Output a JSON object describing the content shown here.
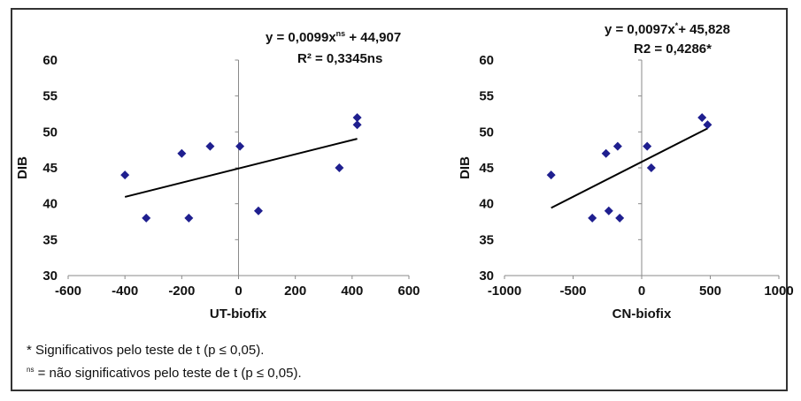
{
  "chart_data": [
    {
      "type": "scatter",
      "xlabel": "UT-biofix",
      "ylabel": "DIB",
      "xlim": [
        -600,
        600
      ],
      "ylim": [
        30,
        60
      ],
      "xticks": [
        "-600",
        "-400",
        "-200",
        "0",
        "200",
        "400",
        "600"
      ],
      "yticks": [
        "30",
        "35",
        "40",
        "45",
        "50",
        "55",
        "60"
      ],
      "equation_main": "y = 0,0099x",
      "equation_sup": "ns",
      "equation_tail": " + 44,907",
      "r2": "R² = 0,3345ns",
      "points": [
        [
          -400,
          44
        ],
        [
          -325,
          38
        ],
        [
          -200,
          47
        ],
        [
          -175,
          38
        ],
        [
          -100,
          48
        ],
        [
          5,
          48
        ],
        [
          70,
          39
        ],
        [
          355,
          45
        ],
        [
          418,
          52
        ],
        [
          418,
          51
        ]
      ],
      "trend": {
        "slope": 0.0099,
        "intercept": 44.907,
        "x_range": [
          -400,
          418
        ]
      },
      "color": "#1f1f8f"
    },
    {
      "type": "scatter",
      "xlabel": "CN-biofix",
      "ylabel": "DIB",
      "xlim": [
        -1000,
        1000
      ],
      "ylim": [
        30,
        60
      ],
      "xticks": [
        "-1000",
        "-500",
        "0",
        "500",
        "1000"
      ],
      "yticks": [
        "30",
        "35",
        "40",
        "45",
        "50",
        "55",
        "60"
      ],
      "equation_main": "y = 0,0097x",
      "equation_sup": "*",
      "equation_tail": "+ 45,828",
      "r2": "R2 = 0,4286*",
      "points": [
        [
          -660,
          44
        ],
        [
          -360,
          38
        ],
        [
          -260,
          47
        ],
        [
          -240,
          39
        ],
        [
          -175,
          48
        ],
        [
          -160,
          38
        ],
        [
          40,
          48
        ],
        [
          70,
          45
        ],
        [
          440,
          52
        ],
        [
          480,
          51
        ]
      ],
      "trend": {
        "slope": 0.0097,
        "intercept": 45.828,
        "x_range": [
          -660,
          480
        ]
      },
      "color": "#1f1f8f"
    }
  ],
  "notes": {
    "n1": "* Significativos pelo teste de t (p ≤ 0,05).",
    "n2_sup": "ns",
    "n2": " = não significativos pelo teste de t (p ≤ 0,05)."
  }
}
